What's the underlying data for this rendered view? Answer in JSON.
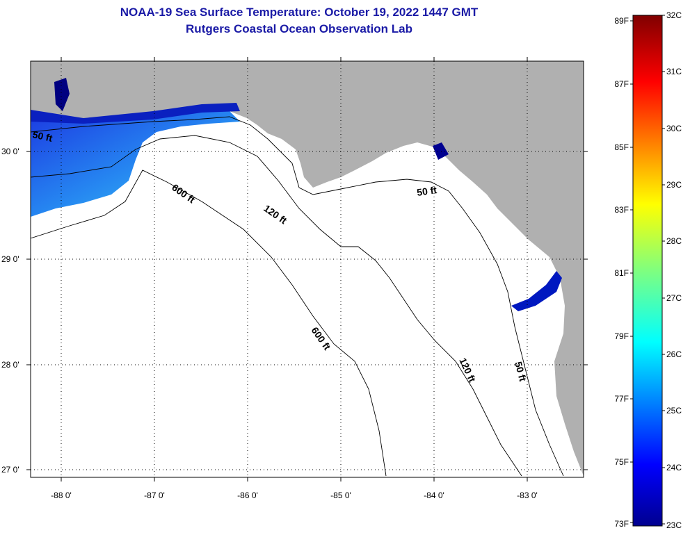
{
  "title": {
    "line1": "NOAA-19 Sea Surface Temperature:  October 19, 2022 1447 GMT",
    "line2": "Rutgers Coastal Ocean Observation Lab"
  },
  "map": {
    "lat_labels": [
      "30 0'",
      "29 0'",
      "28 0'",
      "27 0'"
    ],
    "lon_labels": [
      "-88 0'",
      "-87 0'",
      "-86 0'",
      "-85 0'",
      "-84 0'",
      "-83 0'"
    ],
    "contour_labels": {
      "c50_west": "50 ft",
      "c600_a": "600 ft",
      "c120_a": "120 ft",
      "c50_b": "50 ft",
      "c600_b": "600 ft",
      "c120_b": "120 ft",
      "c50_c": "50 ft"
    },
    "colors": {
      "land": "#b0b0b0",
      "water": "#ffffff",
      "title": "#1a1aa6"
    }
  },
  "colorbar": {
    "fahrenheit": [
      "89F",
      "87F",
      "85F",
      "83F",
      "81F",
      "79F",
      "77F",
      "75F",
      "73F"
    ],
    "celsius": [
      "32C",
      "31C",
      "30C",
      "29C",
      "28C",
      "27C",
      "26C",
      "25C",
      "24C",
      "23C"
    ]
  }
}
